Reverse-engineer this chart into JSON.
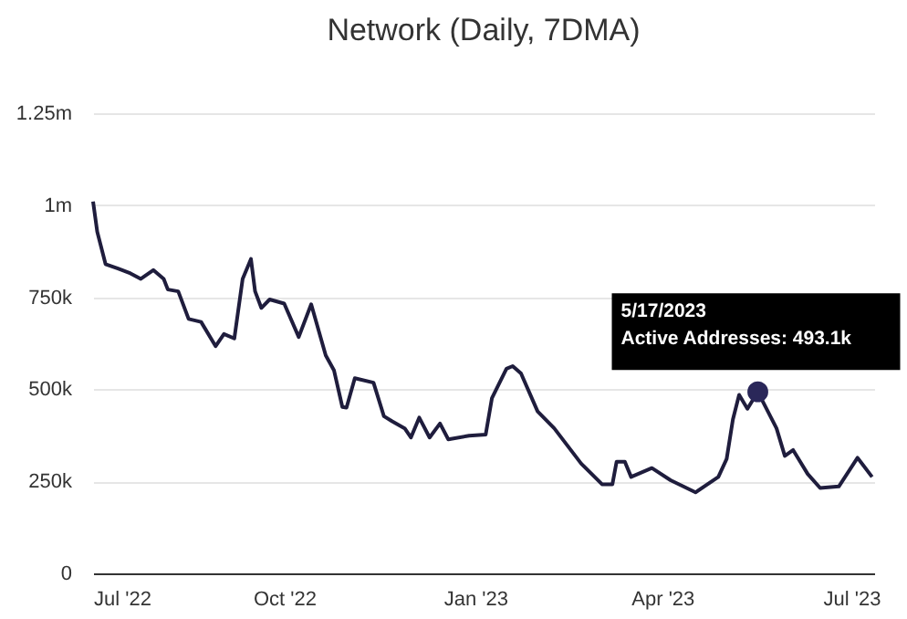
{
  "chart_data": {
    "type": "line",
    "title": "Network (Daily, 7DMA)",
    "x": [
      "2022-07-01",
      "2022-07-03",
      "2022-07-07",
      "2022-07-13",
      "2022-07-19",
      "2022-07-24",
      "2022-07-30",
      "2022-08-04",
      "2022-08-06",
      "2022-08-11",
      "2022-08-16",
      "2022-08-22",
      "2022-08-29",
      "2022-09-02",
      "2022-09-07",
      "2022-09-11",
      "2022-09-15",
      "2022-09-17",
      "2022-09-20",
      "2022-09-24",
      "2022-10-01",
      "2022-10-08",
      "2022-10-14",
      "2022-10-21",
      "2022-10-25",
      "2022-10-29",
      "2022-10-31",
      "2022-11-04",
      "2022-11-13",
      "2022-11-18",
      "2022-11-22",
      "2022-11-28",
      "2022-12-01",
      "2022-12-05",
      "2022-12-10",
      "2022-12-15",
      "2022-12-19",
      "2022-12-29",
      "2023-01-06",
      "2023-01-09",
      "2023-01-16",
      "2023-01-19",
      "2023-01-23",
      "2023-01-31",
      "2023-02-08",
      "2023-02-21",
      "2023-03-03",
      "2023-03-08",
      "2023-03-10",
      "2023-03-14",
      "2023-03-17",
      "2023-03-27",
      "2023-04-05",
      "2023-04-17",
      "2023-04-28",
      "2023-05-02",
      "2023-05-05",
      "2023-05-08",
      "2023-05-12",
      "2023-05-17",
      "2023-05-26",
      "2023-05-30",
      "2023-06-03",
      "2023-06-10",
      "2023-06-16",
      "2023-06-25",
      "2023-07-04",
      "2023-07-11"
    ],
    "series": [
      {
        "color": "#1f1d3d",
        "values": [
          1010000,
          928000,
          840000,
          828000,
          815000,
          800000,
          824000,
          800000,
          771000,
          766000,
          691000,
          683000,
          617000,
          650000,
          638000,
          800000,
          854000,
          766000,
          721000,
          744000,
          733000,
          642000,
          731000,
          592000,
          551000,
          452000,
          450000,
          530000,
          518000,
          427000,
          413000,
          394000,
          369000,
          423000,
          369000,
          407000,
          364000,
          374000,
          377000,
          476000,
          556000,
          563000,
          543000,
          440000,
          394000,
          298000,
          242000,
          242000,
          303000,
          303000,
          262000,
          286000,
          253000,
          220000,
          262000,
          311000,
          418000,
          485000,
          447000,
          493100,
          394000,
          319000,
          335000,
          270000,
          232000,
          236000,
          314000,
          262000
        ]
      },
      {
        "type": "scatter",
        "color": "#2a2759",
        "marker": "circle",
        "x": [
          "2023-05-17"
        ],
        "values": [
          493100
        ]
      }
    ],
    "ylim": [
      0,
      1250000
    ],
    "yticks": [
      {
        "value": 0,
        "label": "0"
      },
      {
        "value": 250000,
        "label": "250k"
      },
      {
        "value": 500000,
        "label": "500k"
      },
      {
        "value": 750000,
        "label": "750k"
      },
      {
        "value": 1000000,
        "label": "1m"
      },
      {
        "value": 1250000,
        "label": "1.25m"
      }
    ],
    "xlim": [
      "2022-07-01",
      "2023-07-12"
    ],
    "xticks": [
      {
        "value": "2022-07-01",
        "label": "Jul '22"
      },
      {
        "value": "2022-10-01",
        "label": "Oct '22"
      },
      {
        "value": "2023-01-01",
        "label": "Jan '23"
      },
      {
        "value": "2023-04-01",
        "label": "Apr '23"
      },
      {
        "value": "2023-07-01",
        "label": "Jul '23"
      }
    ],
    "grid": "y",
    "marker": "none",
    "line_style": "solid",
    "annotations": [
      {
        "text": "5/17/2023\nActive Addresses: 493.1k",
        "x": "2023-05-17",
        "y": 493100
      }
    ]
  }
}
